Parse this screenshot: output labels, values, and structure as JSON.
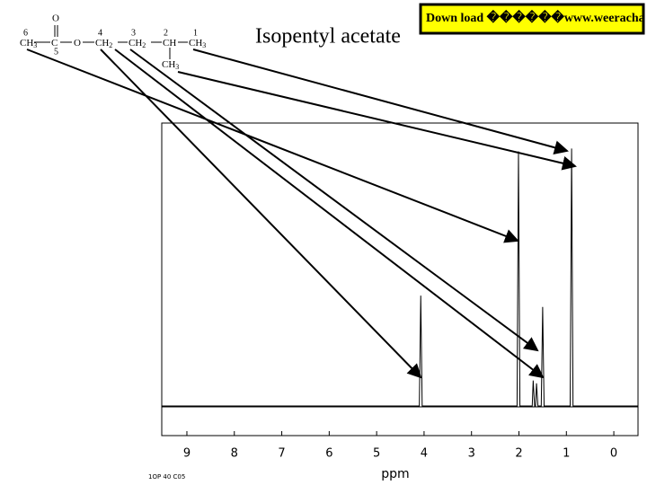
{
  "chart_data": {
    "type": "line",
    "title": "Isopentyl acetate",
    "x_label": "ppm",
    "x": [
      9.53,
      4.1,
      4.07,
      4.04,
      2.04,
      2.01,
      1.98,
      1.72,
      1.7,
      1.67,
      1.65,
      1.63,
      1.6,
      1.53,
      1.5,
      1.47,
      0.92,
      0.89,
      0.86,
      -0.51
    ],
    "values": [
      0,
      0,
      39,
      0,
      0,
      90,
      0,
      0,
      9,
      0,
      0,
      8,
      0,
      0,
      35,
      0,
      0,
      91,
      0,
      0
    ],
    "color": "#000000",
    "xlim": [
      9.53,
      -0.51
    ],
    "ylim": [
      0,
      100
    ],
    "xticks": [
      9,
      8,
      7,
      6,
      5,
      4,
      3,
      2,
      1,
      0
    ]
  },
  "structure": {
    "numbers": [
      "6",
      "4",
      "3",
      "2",
      "1",
      "5"
    ],
    "oxygen": "O",
    "groups": [
      {
        "main": "CH",
        "sub": "3"
      },
      {
        "main": "C"
      },
      {
        "main": "O"
      },
      {
        "main": "CH",
        "sub": "2"
      },
      {
        "main": "CH",
        "sub": "2"
      },
      {
        "main": "CH"
      },
      {
        "main": "CH",
        "sub": "3"
      },
      {
        "main": "CH",
        "sub": "3"
      }
    ]
  },
  "banner": "Down load ������www.weeracha",
  "footnote": "1OP 40 C05"
}
